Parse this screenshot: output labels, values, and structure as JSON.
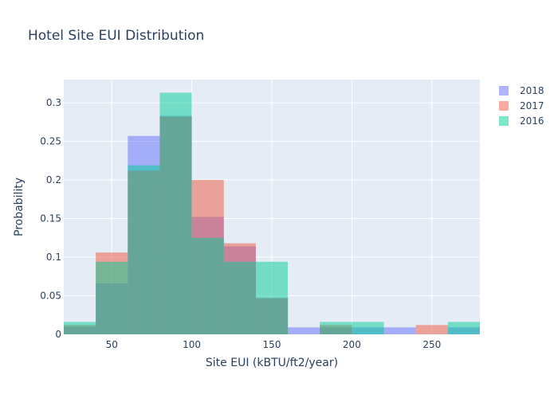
{
  "chart_data": {
    "type": "histogram",
    "title": "Hotel Site EUI Distribution",
    "xlabel": "Site EUI (kBTU/ft2/year)",
    "ylabel": "Probability",
    "xlim": [
      20,
      280
    ],
    "ylim": [
      0,
      0.33
    ],
    "bin_width": 20,
    "bin_starts": [
      20,
      40,
      60,
      80,
      100,
      120,
      140,
      160,
      180,
      200,
      220,
      240,
      260
    ],
    "x_ticks": [
      50,
      100,
      150,
      200,
      250
    ],
    "y_ticks": [
      0,
      0.05,
      0.1,
      0.15,
      0.2,
      0.25,
      0.3
    ],
    "y_tick_labels": [
      "0",
      "0.05",
      "0.1",
      "0.15",
      "0.2",
      "0.25",
      "0.3"
    ],
    "grid": true,
    "legend_position": "top-right",
    "series": [
      {
        "name": "2018",
        "color": "#636efa",
        "values": [
          0.01,
          0.066,
          0.257,
          0.283,
          0.152,
          0.114,
          0.047,
          0.009,
          0.009,
          0.009,
          0.009,
          0,
          0.009
        ]
      },
      {
        "name": "2017",
        "color": "#ef553b",
        "values": [
          0.012,
          0.106,
          0.212,
          0.282,
          0.2,
          0.118,
          0.047,
          0,
          0.012,
          0,
          0,
          0.012,
          0
        ]
      },
      {
        "name": "2016",
        "color": "#00cc96",
        "values": [
          0.016,
          0.094,
          0.219,
          0.313,
          0.125,
          0.094,
          0.094,
          0,
          0.016,
          0.016,
          0,
          0,
          0.016
        ]
      }
    ]
  }
}
